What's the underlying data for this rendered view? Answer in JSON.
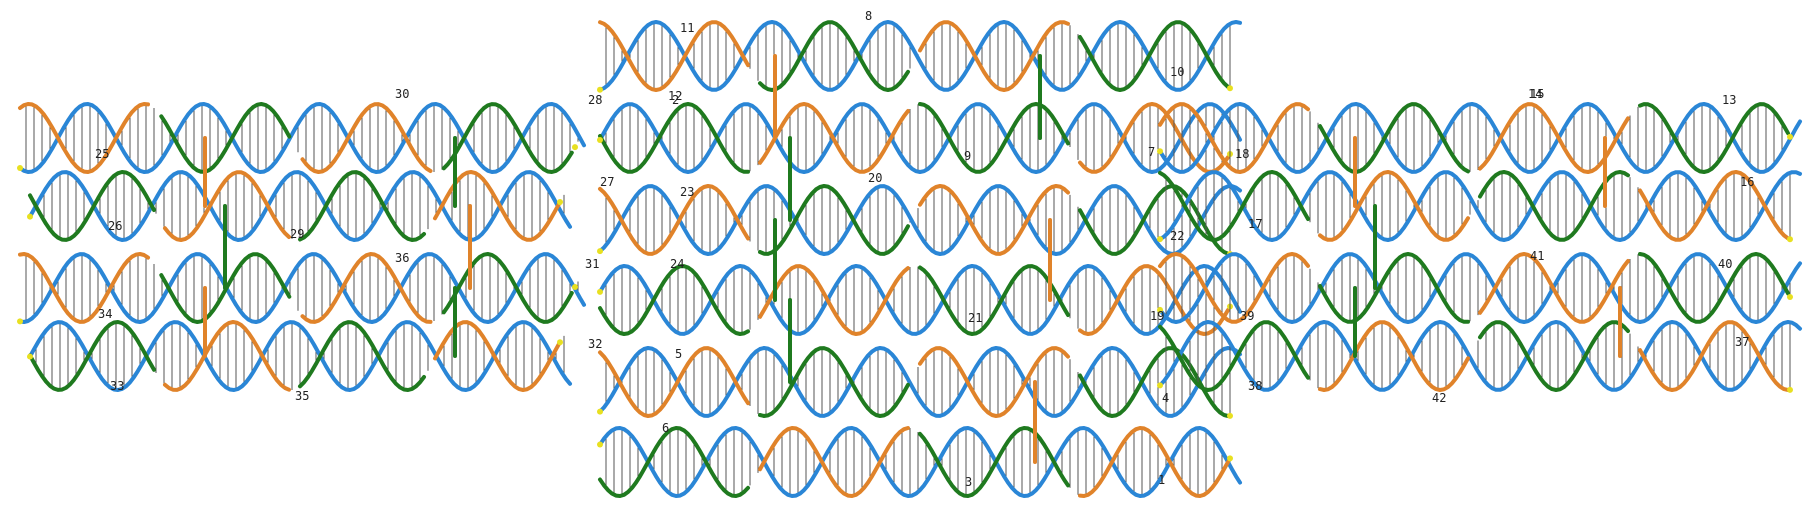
{
  "colors": {
    "scaffold": "#2a86d6",
    "scaffold_dark": "#1a4fa8",
    "staple_orange": "#e0832a",
    "staple_green": "#1f7a1f",
    "base_pair": "#555555",
    "end_marker": "#e8e020"
  },
  "strand_labels": [
    "11",
    "8",
    "10",
    "2",
    "28",
    "30",
    "27",
    "26",
    "25",
    "23",
    "20",
    "29",
    "7",
    "18",
    "15",
    "13",
    "16",
    "17",
    "22",
    "36",
    "31",
    "24",
    "19",
    "39",
    "41",
    "40",
    "34",
    "33",
    "35",
    "32",
    "5",
    "6",
    "4",
    "38",
    "42",
    "37",
    "3",
    "1",
    "12",
    "9",
    "21",
    "14"
  ]
}
